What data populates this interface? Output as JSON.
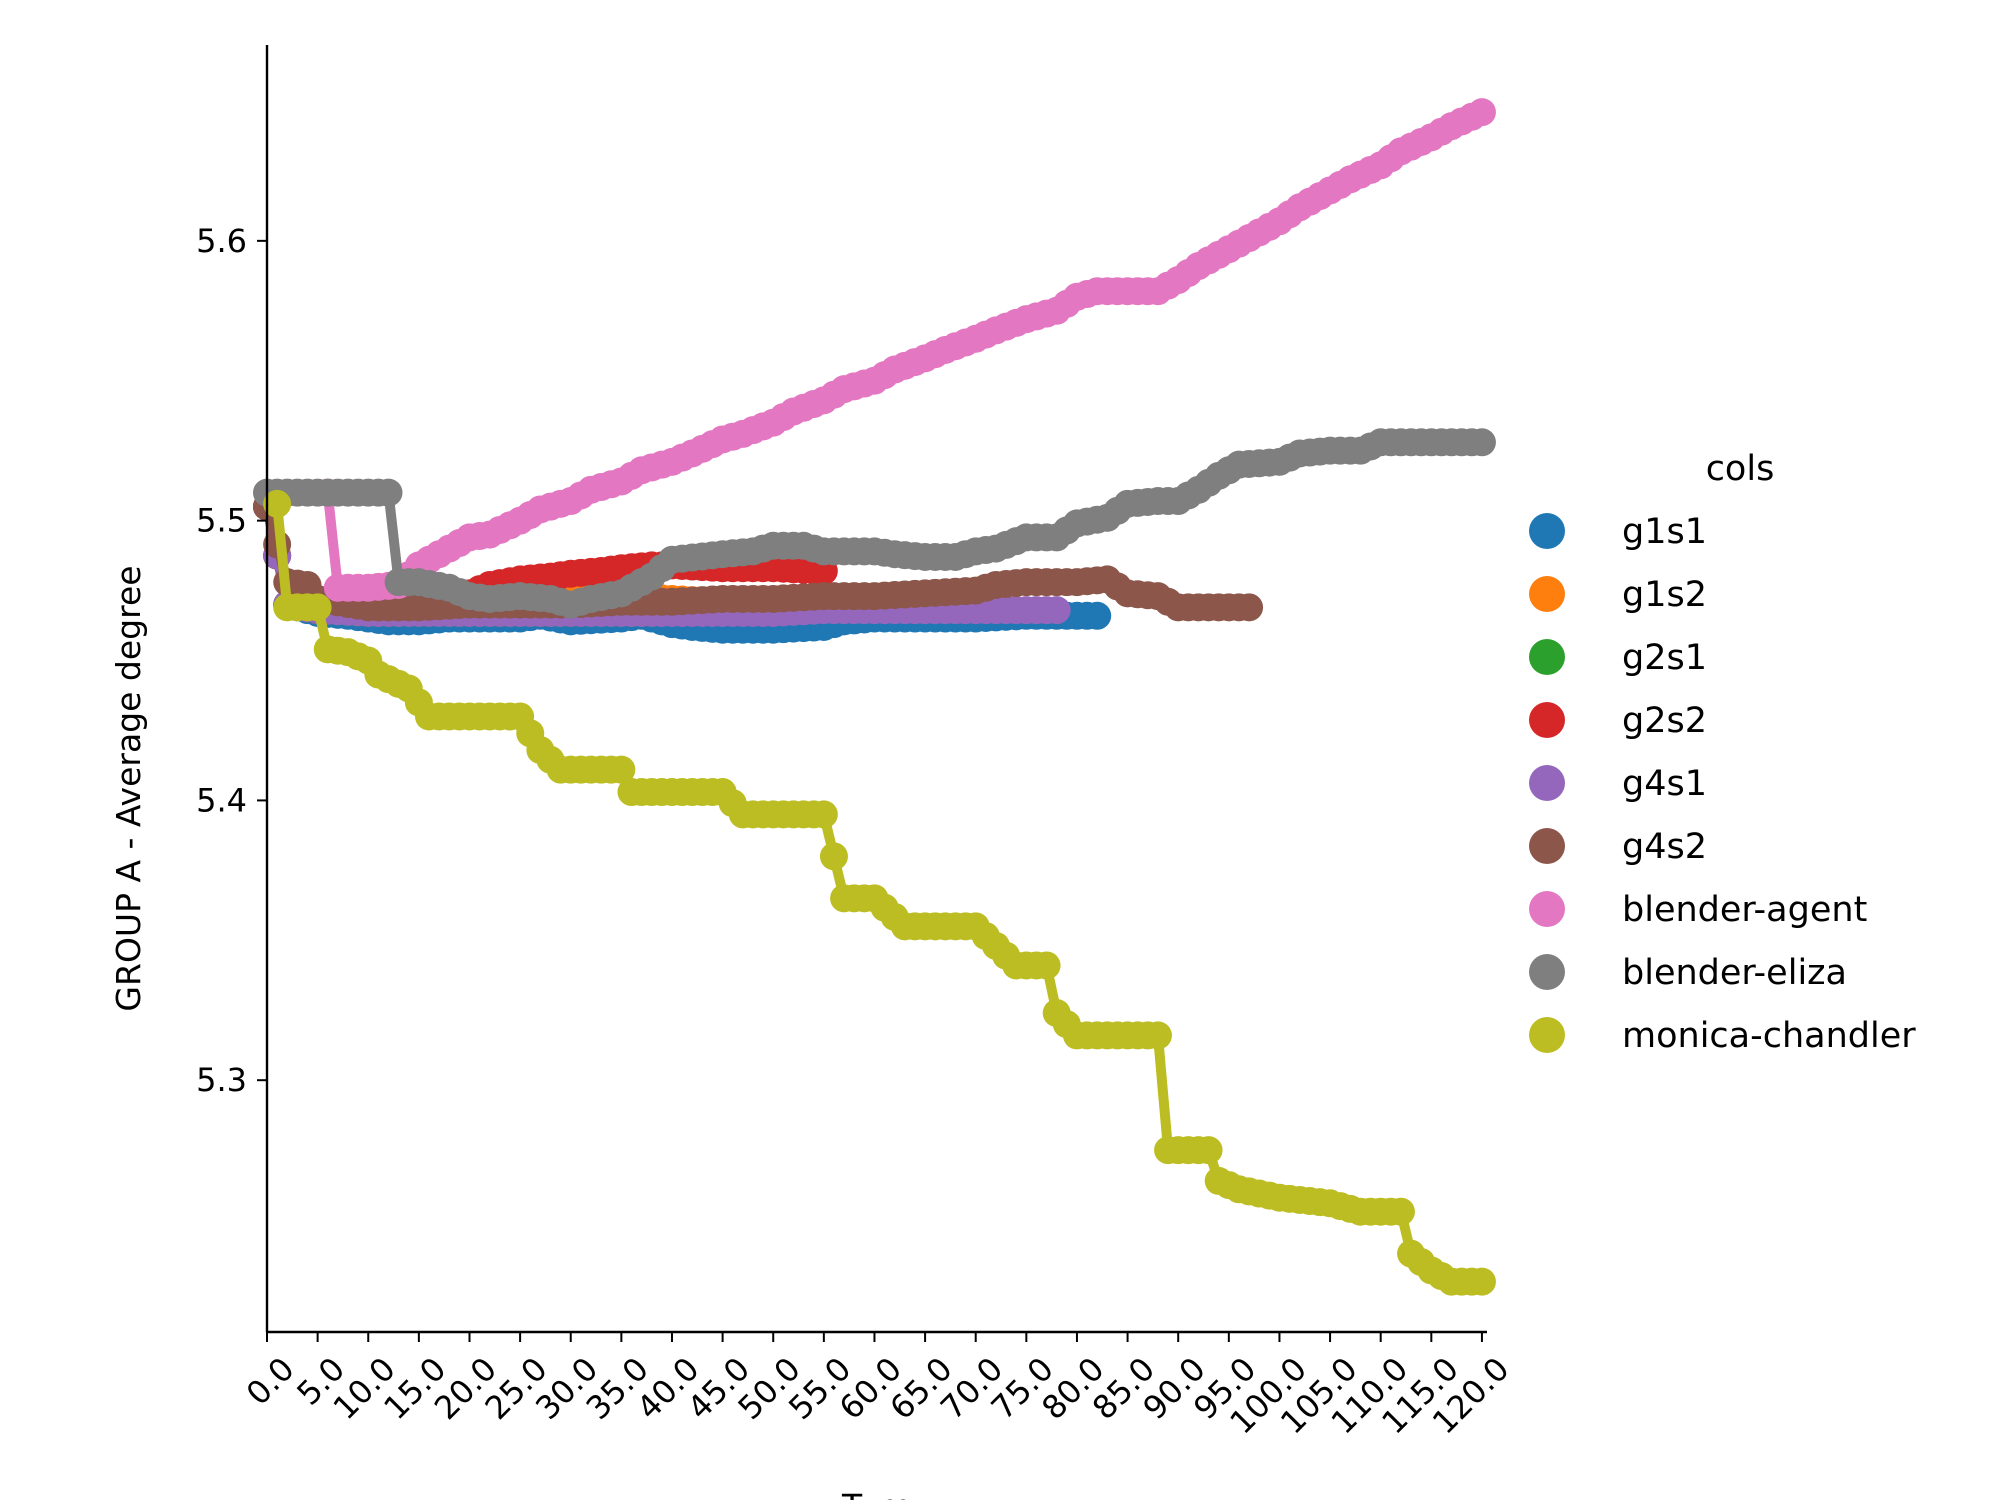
{
  "chart_data": {
    "type": "line",
    "title": "",
    "xlabel": "Turn",
    "ylabel": "GROUP A - Average degree",
    "xlim": [
      0,
      120.5
    ],
    "ylim": [
      5.21,
      5.67
    ],
    "x_ticks": [
      "0.0",
      "5.0",
      "10.0",
      "15.0",
      "20.0",
      "25.0",
      "30.0",
      "35.0",
      "40.0",
      "45.0",
      "50.0",
      "55.0",
      "60.0",
      "65.0",
      "70.0",
      "75.0",
      "80.0",
      "85.0",
      "90.0",
      "95.0",
      "100.0",
      "105.0",
      "110.0",
      "115.0",
      "120.0"
    ],
    "y_ticks": [
      "5.3",
      "5.4",
      "5.5",
      "5.6"
    ],
    "y_tick_values": [
      5.3,
      5.4,
      5.5,
      5.6
    ],
    "legend_title": "cols",
    "legend_position": "right",
    "series": [
      {
        "name": "g1s1",
        "color": "#1f77b4",
        "points": [
          [
            0,
            5.505
          ],
          [
            2,
            5.47
          ],
          [
            5,
            5.467
          ],
          [
            8,
            5.466
          ],
          [
            10,
            5.465
          ],
          [
            12,
            5.464
          ],
          [
            15,
            5.464
          ],
          [
            18,
            5.465
          ],
          [
            20,
            5.465
          ],
          [
            25,
            5.465
          ],
          [
            27,
            5.466
          ],
          [
            30,
            5.464
          ],
          [
            35,
            5.465
          ],
          [
            37,
            5.466
          ],
          [
            40,
            5.463
          ],
          [
            42,
            5.462
          ],
          [
            45,
            5.461
          ],
          [
            50,
            5.461
          ],
          [
            55,
            5.462
          ],
          [
            57,
            5.464
          ],
          [
            60,
            5.465
          ],
          [
            65,
            5.465
          ],
          [
            70,
            5.465
          ],
          [
            75,
            5.466
          ],
          [
            80,
            5.466
          ],
          [
            82,
            5.466
          ]
        ]
      },
      {
        "name": "g1s2",
        "color": "#ff7f0e",
        "points": [
          [
            0,
            5.505
          ],
          [
            2,
            5.47
          ],
          [
            5,
            5.468
          ],
          [
            10,
            5.468
          ],
          [
            15,
            5.47
          ],
          [
            18,
            5.472
          ],
          [
            20,
            5.474
          ],
          [
            22,
            5.476
          ],
          [
            25,
            5.476
          ],
          [
            28,
            5.475
          ],
          [
            30,
            5.474
          ],
          [
            35,
            5.473
          ],
          [
            40,
            5.472
          ],
          [
            45,
            5.471
          ],
          [
            50,
            5.471
          ],
          [
            53,
            5.471
          ]
        ]
      },
      {
        "name": "g2s1",
        "color": "#2ca02c",
        "points": [
          [
            0,
            5.505
          ],
          [
            2,
            5.47
          ],
          [
            5,
            5.468
          ],
          [
            10,
            5.467
          ],
          [
            15,
            5.467
          ],
          [
            20,
            5.467
          ],
          [
            25,
            5.467
          ],
          [
            30,
            5.467
          ],
          [
            35,
            5.467
          ],
          [
            38,
            5.467
          ]
        ]
      },
      {
        "name": "g2s2",
        "color": "#d62728",
        "points": [
          [
            0,
            5.505
          ],
          [
            2,
            5.47
          ],
          [
            5,
            5.468
          ],
          [
            10,
            5.468
          ],
          [
            15,
            5.47
          ],
          [
            20,
            5.474
          ],
          [
            22,
            5.477
          ],
          [
            25,
            5.479
          ],
          [
            28,
            5.48
          ],
          [
            30,
            5.481
          ],
          [
            33,
            5.482
          ],
          [
            35,
            5.483
          ],
          [
            38,
            5.484
          ],
          [
            40,
            5.484
          ],
          [
            45,
            5.483
          ],
          [
            50,
            5.483
          ],
          [
            55,
            5.482
          ]
        ]
      },
      {
        "name": "g4s1",
        "color": "#9467bd",
        "points": [
          [
            0,
            5.505
          ],
          [
            2,
            5.47
          ],
          [
            5,
            5.468
          ],
          [
            10,
            5.467
          ],
          [
            15,
            5.467
          ],
          [
            20,
            5.467
          ],
          [
            25,
            5.467
          ],
          [
            30,
            5.467
          ],
          [
            35,
            5.467
          ],
          [
            40,
            5.467
          ],
          [
            45,
            5.467
          ],
          [
            50,
            5.467
          ],
          [
            55,
            5.468
          ],
          [
            60,
            5.468
          ],
          [
            65,
            5.468
          ],
          [
            70,
            5.468
          ],
          [
            75,
            5.468
          ],
          [
            78,
            5.468
          ]
        ]
      },
      {
        "name": "g4s2",
        "color": "#8c564b",
        "points": [
          [
            0,
            5.505
          ],
          [
            2,
            5.478
          ],
          [
            4,
            5.477
          ],
          [
            5,
            5.472
          ],
          [
            10,
            5.469
          ],
          [
            15,
            5.469
          ],
          [
            20,
            5.47
          ],
          [
            25,
            5.47
          ],
          [
            30,
            5.47
          ],
          [
            35,
            5.471
          ],
          [
            40,
            5.471
          ],
          [
            45,
            5.472
          ],
          [
            50,
            5.472
          ],
          [
            55,
            5.473
          ],
          [
            60,
            5.473
          ],
          [
            65,
            5.474
          ],
          [
            70,
            5.475
          ],
          [
            72,
            5.477
          ],
          [
            75,
            5.478
          ],
          [
            80,
            5.478
          ],
          [
            83,
            5.479
          ],
          [
            85,
            5.474
          ],
          [
            88,
            5.473
          ],
          [
            90,
            5.469
          ],
          [
            95,
            5.469
          ],
          [
            97,
            5.469
          ]
        ]
      },
      {
        "name": "blender-agent",
        "color": "#e377c2",
        "points": [
          [
            6,
            5.51
          ],
          [
            7,
            5.476
          ],
          [
            10,
            5.476
          ],
          [
            13,
            5.477
          ],
          [
            15,
            5.484
          ],
          [
            18,
            5.49
          ],
          [
            20,
            5.494
          ],
          [
            22,
            5.495
          ],
          [
            25,
            5.5
          ],
          [
            27,
            5.504
          ],
          [
            30,
            5.507
          ],
          [
            32,
            5.511
          ],
          [
            35,
            5.514
          ],
          [
            37,
            5.518
          ],
          [
            40,
            5.521
          ],
          [
            42,
            5.524
          ],
          [
            45,
            5.529
          ],
          [
            47,
            5.531
          ],
          [
            50,
            5.535
          ],
          [
            52,
            5.539
          ],
          [
            55,
            5.543
          ],
          [
            57,
            5.547
          ],
          [
            60,
            5.55
          ],
          [
            62,
            5.554
          ],
          [
            65,
            5.558
          ],
          [
            67,
            5.561
          ],
          [
            70,
            5.565
          ],
          [
            72,
            5.568
          ],
          [
            75,
            5.572
          ],
          [
            78,
            5.575
          ],
          [
            80,
            5.58
          ],
          [
            82,
            5.582
          ],
          [
            85,
            5.582
          ],
          [
            88,
            5.582
          ],
          [
            90,
            5.586
          ],
          [
            92,
            5.591
          ],
          [
            95,
            5.597
          ],
          [
            97,
            5.601
          ],
          [
            100,
            5.607
          ],
          [
            102,
            5.612
          ],
          [
            105,
            5.618
          ],
          [
            107,
            5.622
          ],
          [
            110,
            5.627
          ],
          [
            112,
            5.632
          ],
          [
            115,
            5.637
          ],
          [
            117,
            5.641
          ],
          [
            120,
            5.646
          ]
        ]
      },
      {
        "name": "blender-eliza",
        "color": "#7f7f7f",
        "points": [
          [
            0,
            5.51
          ],
          [
            5,
            5.51
          ],
          [
            10,
            5.51
          ],
          [
            12,
            5.51
          ],
          [
            13,
            5.478
          ],
          [
            15,
            5.478
          ],
          [
            18,
            5.476
          ],
          [
            20,
            5.473
          ],
          [
            22,
            5.472
          ],
          [
            25,
            5.473
          ],
          [
            28,
            5.472
          ],
          [
            30,
            5.47
          ],
          [
            32,
            5.472
          ],
          [
            35,
            5.474
          ],
          [
            38,
            5.48
          ],
          [
            40,
            5.486
          ],
          [
            45,
            5.488
          ],
          [
            48,
            5.489
          ],
          [
            50,
            5.491
          ],
          [
            53,
            5.491
          ],
          [
            55,
            5.489
          ],
          [
            60,
            5.489
          ],
          [
            62,
            5.488
          ],
          [
            65,
            5.487
          ],
          [
            68,
            5.487
          ],
          [
            70,
            5.489
          ],
          [
            72,
            5.49
          ],
          [
            75,
            5.494
          ],
          [
            78,
            5.494
          ],
          [
            80,
            5.499
          ],
          [
            83,
            5.501
          ],
          [
            85,
            5.506
          ],
          [
            88,
            5.507
          ],
          [
            90,
            5.507
          ],
          [
            92,
            5.511
          ],
          [
            94,
            5.516
          ],
          [
            96,
            5.52
          ],
          [
            100,
            5.521
          ],
          [
            102,
            5.524
          ],
          [
            105,
            5.525
          ],
          [
            108,
            5.525
          ],
          [
            110,
            5.528
          ],
          [
            115,
            5.528
          ],
          [
            120,
            5.528
          ]
        ]
      },
      {
        "name": "monica-chandler",
        "color": "#bcbd22",
        "points": [
          [
            1,
            5.506
          ],
          [
            2,
            5.469
          ],
          [
            5,
            5.469
          ],
          [
            6,
            5.454
          ],
          [
            8,
            5.453
          ],
          [
            10,
            5.45
          ],
          [
            11,
            5.445
          ],
          [
            14,
            5.44
          ],
          [
            16,
            5.43
          ],
          [
            20,
            5.43
          ],
          [
            25,
            5.43
          ],
          [
            27,
            5.418
          ],
          [
            29,
            5.411
          ],
          [
            35,
            5.411
          ],
          [
            36,
            5.403
          ],
          [
            40,
            5.403
          ],
          [
            45,
            5.403
          ],
          [
            47,
            5.395
          ],
          [
            50,
            5.395
          ],
          [
            55,
            5.395
          ],
          [
            57,
            5.365
          ],
          [
            60,
            5.365
          ],
          [
            63,
            5.355
          ],
          [
            67,
            5.355
          ],
          [
            70,
            5.355
          ],
          [
            72,
            5.348
          ],
          [
            74,
            5.341
          ],
          [
            77,
            5.341
          ],
          [
            78,
            5.324
          ],
          [
            80,
            5.316
          ],
          [
            85,
            5.316
          ],
          [
            88,
            5.316
          ],
          [
            89,
            5.275
          ],
          [
            93,
            5.275
          ],
          [
            94,
            5.264
          ],
          [
            96,
            5.261
          ],
          [
            100,
            5.258
          ],
          [
            105,
            5.256
          ],
          [
            108,
            5.253
          ],
          [
            112,
            5.253
          ],
          [
            113,
            5.238
          ],
          [
            115,
            5.232
          ],
          [
            117,
            5.228
          ],
          [
            120,
            5.228
          ]
        ]
      }
    ]
  }
}
